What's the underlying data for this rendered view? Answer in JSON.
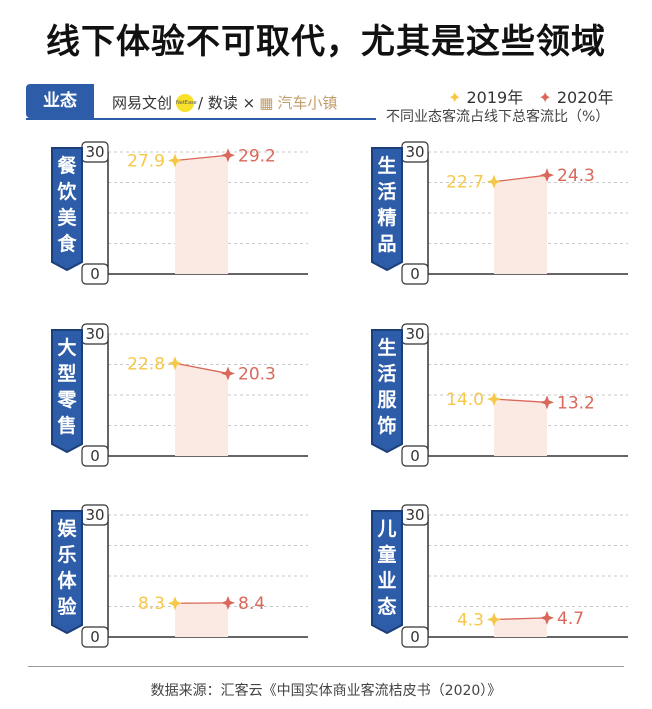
{
  "title": "线下体验不可取代，尤其是这些领域",
  "tag": "业态",
  "credits": {
    "netease": "网易文创",
    "netease_logo": "NetEase",
    "shudu": "/ 数读 ×",
    "car": "汽车小镇",
    "car_icon": "▦"
  },
  "legend": {
    "star19": "✦",
    "y2019": "2019年",
    "star20": "✦",
    "y2020": "2020年"
  },
  "subtitle": "不同业态客流占线下总客流比（%）",
  "footer": "数据来源：汇客云《中国实体商业客流桔皮书（2020）》",
  "colors": {
    "y2019": "#f5c84a",
    "y2020": "#d9685a",
    "ribbon": "#2d5ca8",
    "fill": "#fbe9e4"
  },
  "chart_data": {
    "type": "line",
    "x": [
      "2019年",
      "2020年"
    ],
    "ylim": [
      0,
      30
    ],
    "yticks": [
      0,
      30
    ],
    "unit": "%",
    "panels": [
      {
        "category": "餐饮美食",
        "values": [
          27.9,
          29.2
        ],
        "labels": [
          "27.9",
          "29.2"
        ]
      },
      {
        "category": "生活精品",
        "values": [
          22.7,
          24.3
        ],
        "labels": [
          "22.7",
          "24.3"
        ]
      },
      {
        "category": "大型零售",
        "values": [
          22.8,
          20.3
        ],
        "labels": [
          "22.8",
          "20.3"
        ]
      },
      {
        "category": "生活服饰",
        "values": [
          14.0,
          13.2
        ],
        "labels": [
          "14.0",
          "13.2"
        ]
      },
      {
        "category": "娱乐体验",
        "values": [
          8.3,
          8.4
        ],
        "labels": [
          "8.3",
          "8.4"
        ]
      },
      {
        "category": "儿童业态",
        "values": [
          4.3,
          4.7
        ],
        "labels": [
          "4.3",
          "4.7"
        ]
      }
    ]
  }
}
